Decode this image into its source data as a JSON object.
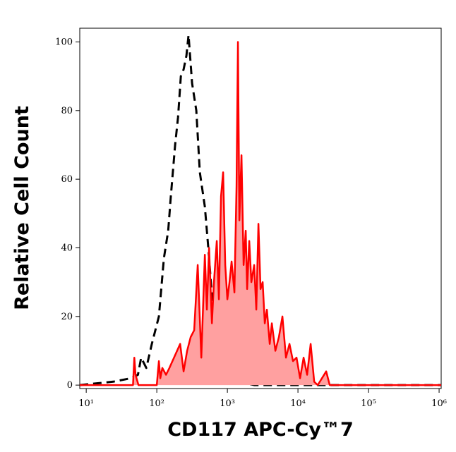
{
  "chart_data": {
    "type": "histogram-overlay",
    "xlabel": "CD117 APC-Cy™7",
    "ylabel": "Relative Cell Count",
    "xscale": "log",
    "xlim": [
      8.1,
      1070000
    ],
    "ylim": [
      -1,
      104
    ],
    "xticks": [
      {
        "value": 10,
        "label": "10¹"
      },
      {
        "value": 100,
        "label": "10²"
      },
      {
        "value": 1000,
        "label": "10³"
      },
      {
        "value": 10000,
        "label": "10⁴"
      },
      {
        "value": 100000,
        "label": "10⁵"
      },
      {
        "value": 1000000,
        "label": "10⁶"
      }
    ],
    "yticks": [
      0,
      20,
      40,
      60,
      80,
      100
    ],
    "series": [
      {
        "color": "#000000",
        "line_style": "dashed",
        "filled": false,
        "x": [
          8.1,
          24,
          43,
          54,
          60,
          71,
          85,
          107,
          126,
          145,
          158,
          182,
          200,
          219,
          240,
          263,
          282,
          316,
          363,
          407,
          479,
          537,
          603,
          676,
          759,
          912,
          1148,
          1514,
          2399,
          1070000
        ],
        "values": [
          0,
          1,
          2,
          3,
          8,
          5,
          12,
          20,
          37,
          45,
          55,
          70,
          78,
          90,
          92,
          96,
          102,
          88,
          80,
          62,
          52,
          40,
          26,
          18,
          12,
          6,
          3,
          1,
          0,
          0
        ]
      },
      {
        "color": "#ff0000",
        "fill_color": "#ffa0a0",
        "line_style": "solid",
        "filled": true,
        "x": [
          8.1,
          46,
          48,
          50,
          55,
          100,
          107,
          112,
          120,
          135,
          151,
          214,
          240,
          269,
          302,
          339,
          380,
          427,
          479,
          513,
          550,
          603,
          646,
          708,
          759,
          813,
          871,
          933,
          1000,
          1072,
          1148,
          1259,
          1349,
          1413,
          1479,
          1585,
          1698,
          1820,
          1905,
          2042,
          2188,
          2399,
          2570,
          2754,
          2951,
          3162,
          3388,
          3631,
          3981,
          4266,
          4786,
          5370,
          6026,
          6761,
          7586,
          8511,
          9550,
          10715,
          12023,
          13490,
          15136,
          16982,
          19055,
          25119,
          28184,
          1070000
        ],
        "values": [
          0,
          0,
          8,
          3,
          0,
          0,
          7,
          2,
          5,
          3,
          5,
          12,
          4,
          10,
          14,
          16,
          35,
          8,
          38,
          22,
          40,
          18,
          30,
          42,
          25,
          55,
          62,
          35,
          25,
          30,
          36,
          27,
          58,
          100,
          48,
          67,
          35,
          45,
          28,
          42,
          30,
          35,
          22,
          47,
          28,
          30,
          18,
          22,
          12,
          18,
          10,
          14,
          20,
          8,
          12,
          7,
          8,
          2,
          8,
          3,
          12,
          1,
          0,
          4,
          0,
          0
        ]
      }
    ]
  }
}
